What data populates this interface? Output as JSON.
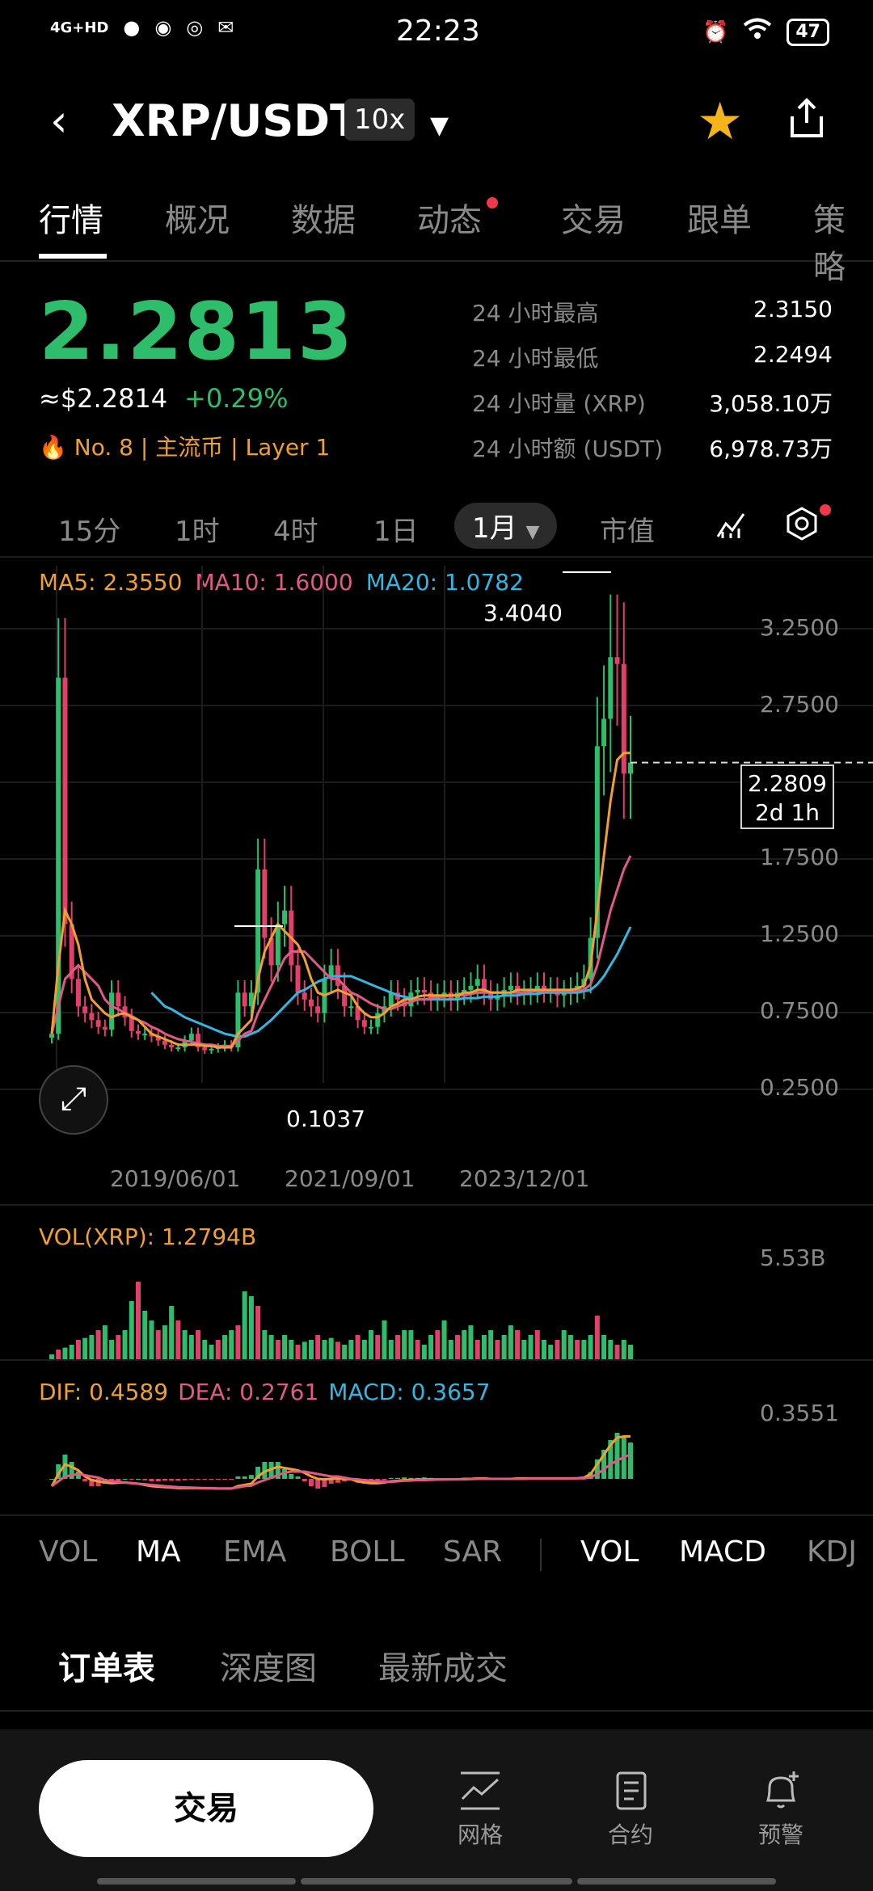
{
  "status": {
    "time": "22:23",
    "network": "4G+HD",
    "battery": "47"
  },
  "header": {
    "pair": "XRP/USDT",
    "leverage": "10x"
  },
  "tabs": [
    "行情",
    "概况",
    "数据",
    "动态",
    "交易",
    "跟单",
    "策略"
  ],
  "price": {
    "last": "2.2813",
    "usd": "≈$2.2814",
    "change": "+0.29%",
    "rank": "No. 8",
    "tag1": "主流币",
    "tag2": "Layer 1"
  },
  "stats": [
    {
      "k": "24 小时最高",
      "v": "2.3150"
    },
    {
      "k": "24 小时最低",
      "v": "2.2494"
    },
    {
      "k": "24 小时量 (XRP)",
      "v": "3,058.10万"
    },
    {
      "k": "24 小时额 (USDT)",
      "v": "6,978.73万"
    }
  ],
  "intervals": [
    "15分",
    "1时",
    "4时",
    "1日",
    "1月",
    "市值"
  ],
  "ma": {
    "ma5": "MA5: 2.3550",
    "ma10": "MA10: 1.6000",
    "ma20": "MA20: 1.0782"
  },
  "colors": {
    "up": "#2ebd6a",
    "down": "#e0406a",
    "ma5": "#f0a030",
    "ma10": "#e05a86",
    "ma20": "#35b6e0"
  },
  "chart_data": {
    "type": "line",
    "title": "",
    "y_ticks": [
      "3.2500",
      "2.7500",
      "1.7500",
      "1.2500",
      "0.7500",
      "0.2500"
    ],
    "x_ticks": [
      "2019/06/01",
      "2021/09/01",
      "2023/12/01"
    ],
    "high_label": "3.4040",
    "low_label": "0.1037",
    "current_price": "2.2809",
    "countdown": "2d 1h",
    "ylim": [
      0,
      3.6
    ],
    "closes": [
      0.3,
      2.9,
      1.1,
      0.7,
      0.5,
      0.45,
      0.4,
      0.35,
      0.33,
      0.6,
      0.5,
      0.42,
      0.32,
      0.3,
      0.3,
      0.28,
      0.25,
      0.22,
      0.2,
      0.2,
      0.25,
      0.3,
      0.2,
      0.18,
      0.19,
      0.2,
      0.22,
      0.2,
      0.6,
      0.5,
      0.6,
      1.5,
      1.0,
      0.8,
      1.1,
      1.2,
      0.8,
      0.6,
      0.55,
      0.5,
      0.45,
      0.7,
      0.8,
      0.65,
      0.5,
      0.5,
      0.4,
      0.35,
      0.35,
      0.45,
      0.5,
      0.6,
      0.55,
      0.5,
      0.6,
      0.62,
      0.6,
      0.55,
      0.58,
      0.6,
      0.55,
      0.6,
      0.62,
      0.65,
      0.7,
      0.6,
      0.55,
      0.58,
      0.62,
      0.65,
      0.6,
      0.6,
      0.62,
      0.65,
      0.62,
      0.62,
      0.58,
      0.6,
      0.62,
      0.65,
      0.7,
      1.0,
      2.4,
      2.6,
      3.05,
      3.0,
      2.2,
      2.28
    ],
    "ma5": [
      0.3,
      0.8,
      1.2,
      1.1,
      0.95,
      0.7,
      0.55,
      0.5,
      0.45,
      0.42,
      0.44,
      0.45,
      0.42,
      0.4,
      0.35,
      0.3,
      0.28,
      0.26,
      0.24,
      0.22,
      0.22,
      0.22,
      0.22,
      0.21,
      0.21,
      0.2,
      0.2,
      0.2,
      0.3,
      0.35,
      0.4,
      0.7,
      0.9,
      1.0,
      1.1,
      1.05,
      1.0,
      0.95,
      0.85,
      0.7,
      0.6,
      0.58,
      0.6,
      0.62,
      0.6,
      0.58,
      0.5,
      0.45,
      0.42,
      0.42,
      0.45,
      0.5,
      0.52,
      0.55,
      0.55,
      0.57,
      0.58,
      0.58,
      0.58,
      0.58,
      0.58,
      0.58,
      0.6,
      0.6,
      0.62,
      0.62,
      0.6,
      0.6,
      0.6,
      0.6,
      0.62,
      0.62,
      0.62,
      0.62,
      0.62,
      0.62,
      0.62,
      0.62,
      0.62,
      0.63,
      0.65,
      0.8,
      1.2,
      1.6,
      2.0,
      2.3,
      2.35,
      2.35
    ],
    "ma10": [
      0.3,
      0.5,
      0.7,
      0.75,
      0.8,
      0.75,
      0.7,
      0.65,
      0.55,
      0.5,
      0.48,
      0.45,
      0.43,
      0.4,
      0.38,
      0.35,
      0.33,
      0.3,
      0.28,
      0.26,
      0.25,
      0.24,
      0.23,
      0.22,
      0.22,
      0.21,
      0.21,
      0.21,
      0.25,
      0.3,
      0.32,
      0.45,
      0.55,
      0.65,
      0.75,
      0.85,
      0.9,
      0.9,
      0.9,
      0.85,
      0.8,
      0.75,
      0.7,
      0.7,
      0.65,
      0.6,
      0.58,
      0.55,
      0.52,
      0.5,
      0.48,
      0.48,
      0.5,
      0.52,
      0.53,
      0.55,
      0.55,
      0.56,
      0.57,
      0.57,
      0.58,
      0.58,
      0.58,
      0.59,
      0.6,
      0.6,
      0.6,
      0.6,
      0.6,
      0.6,
      0.6,
      0.6,
      0.61,
      0.61,
      0.61,
      0.61,
      0.61,
      0.61,
      0.61,
      0.62,
      0.62,
      0.66,
      0.8,
      1.0,
      1.2,
      1.35,
      1.5,
      1.6
    ],
    "ma20": [
      null,
      null,
      null,
      null,
      null,
      null,
      null,
      null,
      null,
      null,
      null,
      null,
      null,
      null,
      null,
      0.6,
      0.55,
      0.5,
      0.48,
      0.45,
      0.42,
      0.4,
      0.38,
      0.36,
      0.34,
      0.32,
      0.3,
      0.29,
      0.28,
      0.28,
      0.3,
      0.32,
      0.36,
      0.4,
      0.45,
      0.5,
      0.55,
      0.6,
      0.62,
      0.65,
      0.68,
      0.7,
      0.72,
      0.72,
      0.72,
      0.72,
      0.7,
      0.68,
      0.66,
      0.64,
      0.62,
      0.6,
      0.58,
      0.57,
      0.56,
      0.55,
      0.55,
      0.55,
      0.55,
      0.55,
      0.55,
      0.55,
      0.56,
      0.56,
      0.56,
      0.57,
      0.57,
      0.57,
      0.58,
      0.58,
      0.58,
      0.59,
      0.59,
      0.59,
      0.6,
      0.6,
      0.6,
      0.6,
      0.6,
      0.6,
      0.61,
      0.62,
      0.66,
      0.72,
      0.8,
      0.88,
      0.98,
      1.08
    ]
  },
  "volume": {
    "legend": "VOL(XRP): 1.2794B",
    "axis_top": "5.53B",
    "bars": [
      0.05,
      0.1,
      0.12,
      0.15,
      0.2,
      0.22,
      0.25,
      0.3,
      0.35,
      0.2,
      0.25,
      0.3,
      0.6,
      0.8,
      0.5,
      0.4,
      0.3,
      0.35,
      0.55,
      0.4,
      0.3,
      0.25,
      0.3,
      0.2,
      0.15,
      0.2,
      0.25,
      0.3,
      0.35,
      0.7,
      0.65,
      0.55,
      0.3,
      0.25,
      0.2,
      0.25,
      0.2,
      0.15,
      0.18,
      0.2,
      0.25,
      0.2,
      0.22,
      0.18,
      0.15,
      0.2,
      0.25,
      0.2,
      0.3,
      0.25,
      0.4,
      0.2,
      0.25,
      0.3,
      0.3,
      0.2,
      0.15,
      0.25,
      0.3,
      0.4,
      0.2,
      0.25,
      0.3,
      0.35,
      0.2,
      0.25,
      0.3,
      0.2,
      0.25,
      0.35,
      0.3,
      0.2,
      0.25,
      0.3,
      0.2,
      0.15,
      0.2,
      0.3,
      0.25,
      0.2,
      0.2,
      0.25,
      0.45,
      0.25,
      0.2,
      0.15,
      0.2,
      0.15
    ]
  },
  "macd": {
    "dif": "DIF: 0.4589",
    "dea": "DEA: 0.2761",
    "macd": "MACD: 0.3657",
    "axis_top": "0.3551"
  },
  "indicators": [
    "VOL",
    "MA",
    "EMA",
    "BOLL",
    "SAR",
    "VOL",
    "MACD",
    "KDJ"
  ],
  "order_tabs": [
    "订单表",
    "深度图",
    "最新成交"
  ],
  "bottom": {
    "trade": "交易",
    "grid": "网格",
    "contract": "合约",
    "alert": "预警"
  }
}
